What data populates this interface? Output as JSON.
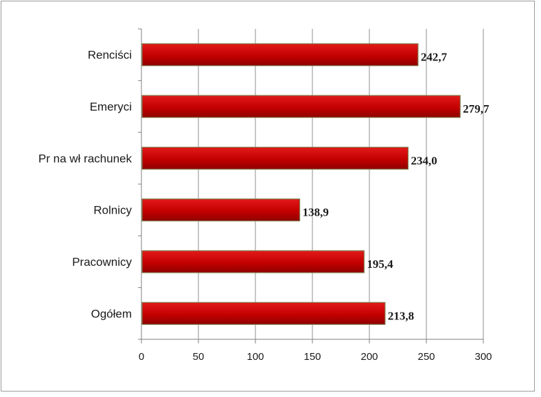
{
  "chart_data": {
    "type": "bar",
    "orientation": "horizontal",
    "categories": [
      "Renciści",
      "Emeryci",
      "Pr na wł rachunek",
      "Rolnicy",
      "Pracownicy",
      "Ogółem"
    ],
    "values": [
      242.7,
      279.7,
      234.0,
      138.9,
      195.4,
      213.8
    ],
    "value_labels": [
      "242,7",
      "279,7",
      "234,0",
      "138,9",
      "195,4",
      "213,8"
    ],
    "xlim": [
      0,
      300
    ],
    "x_ticks": [
      0,
      50,
      100,
      150,
      200,
      250,
      300
    ],
    "x_tick_labels": [
      "0",
      "50",
      "100",
      "150",
      "200",
      "250",
      "300"
    ],
    "title": "",
    "xlabel": "",
    "ylabel": "",
    "grid": "vertical",
    "legend": "none",
    "colors": {
      "bar": "#c00000",
      "bar_edge": "#7f7f4f",
      "grid": "#8c8c8c",
      "axis": "#7f7f7f"
    }
  }
}
